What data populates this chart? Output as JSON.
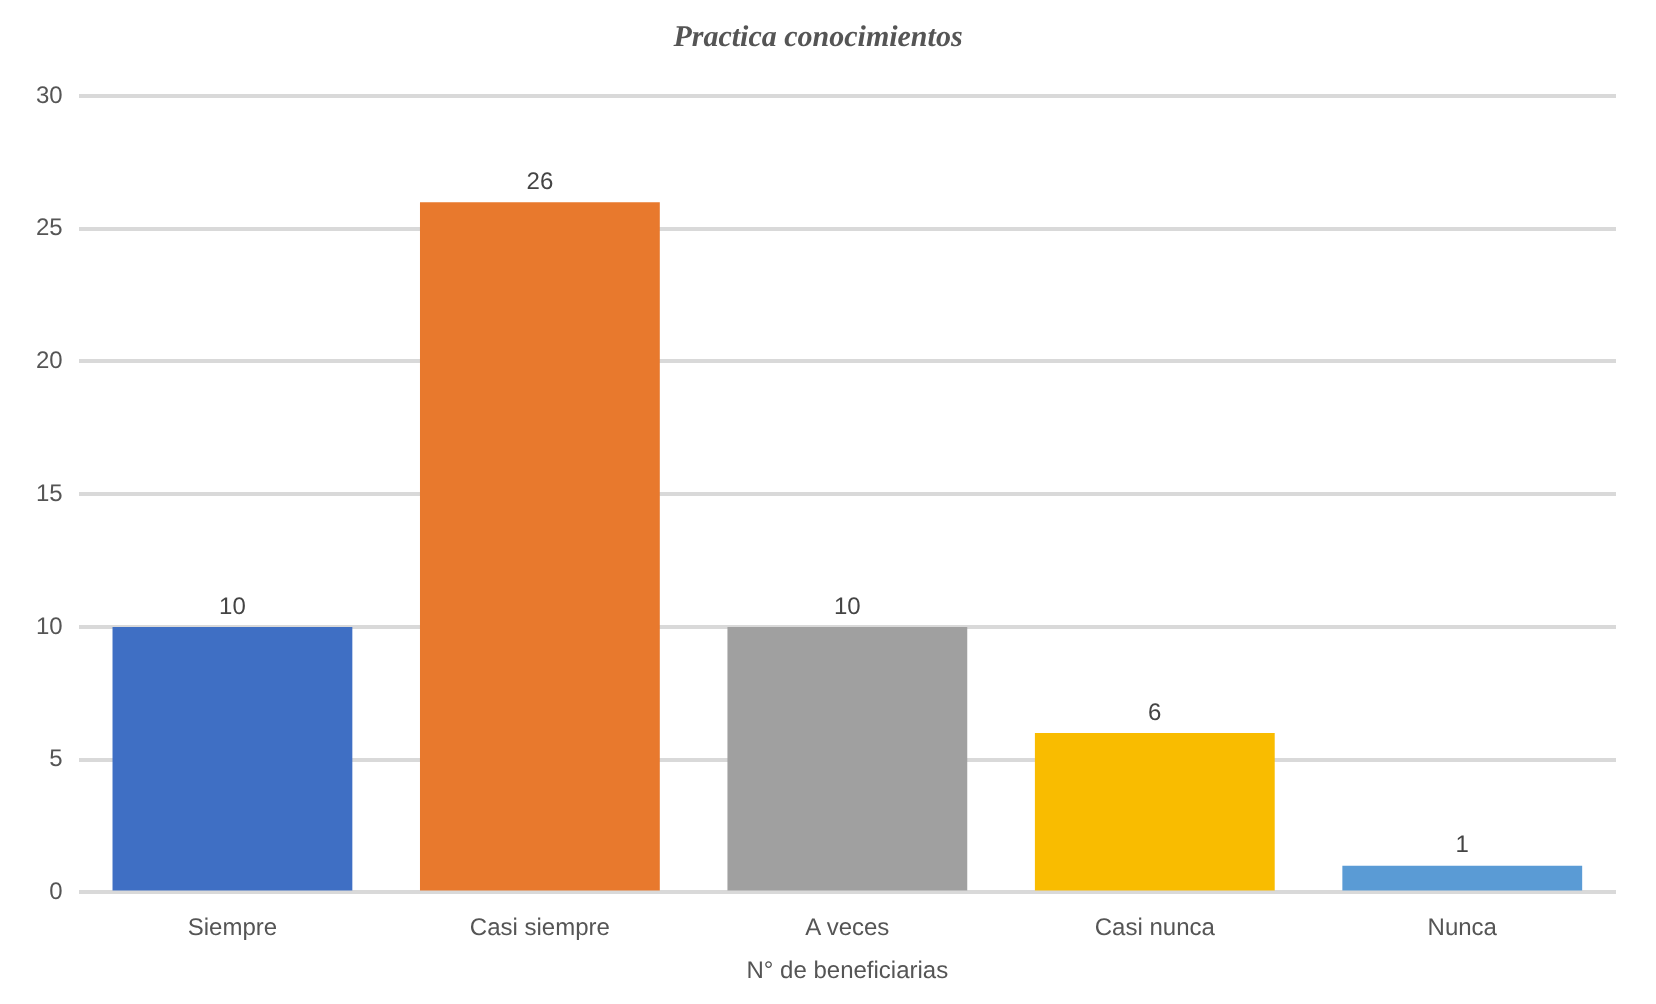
{
  "chart_data": {
    "type": "bar",
    "title": "Practica conocimientos",
    "xlabel": "N° de beneficiarias",
    "categories": [
      "Siempre",
      "Casi siempre",
      "A veces",
      "Casi nunca",
      "Nunca"
    ],
    "values": [
      10,
      26,
      10,
      6,
      1
    ],
    "colors": [
      "#3f6fc4",
      "#e8792d",
      "#a0a0a0",
      "#f9bc00",
      "#5a9bd5"
    ],
    "ylim": [
      0,
      30
    ],
    "yticks": [
      0,
      5,
      10,
      15,
      20,
      25,
      30
    ],
    "grid": "y",
    "legend": false,
    "data_labels": true
  }
}
